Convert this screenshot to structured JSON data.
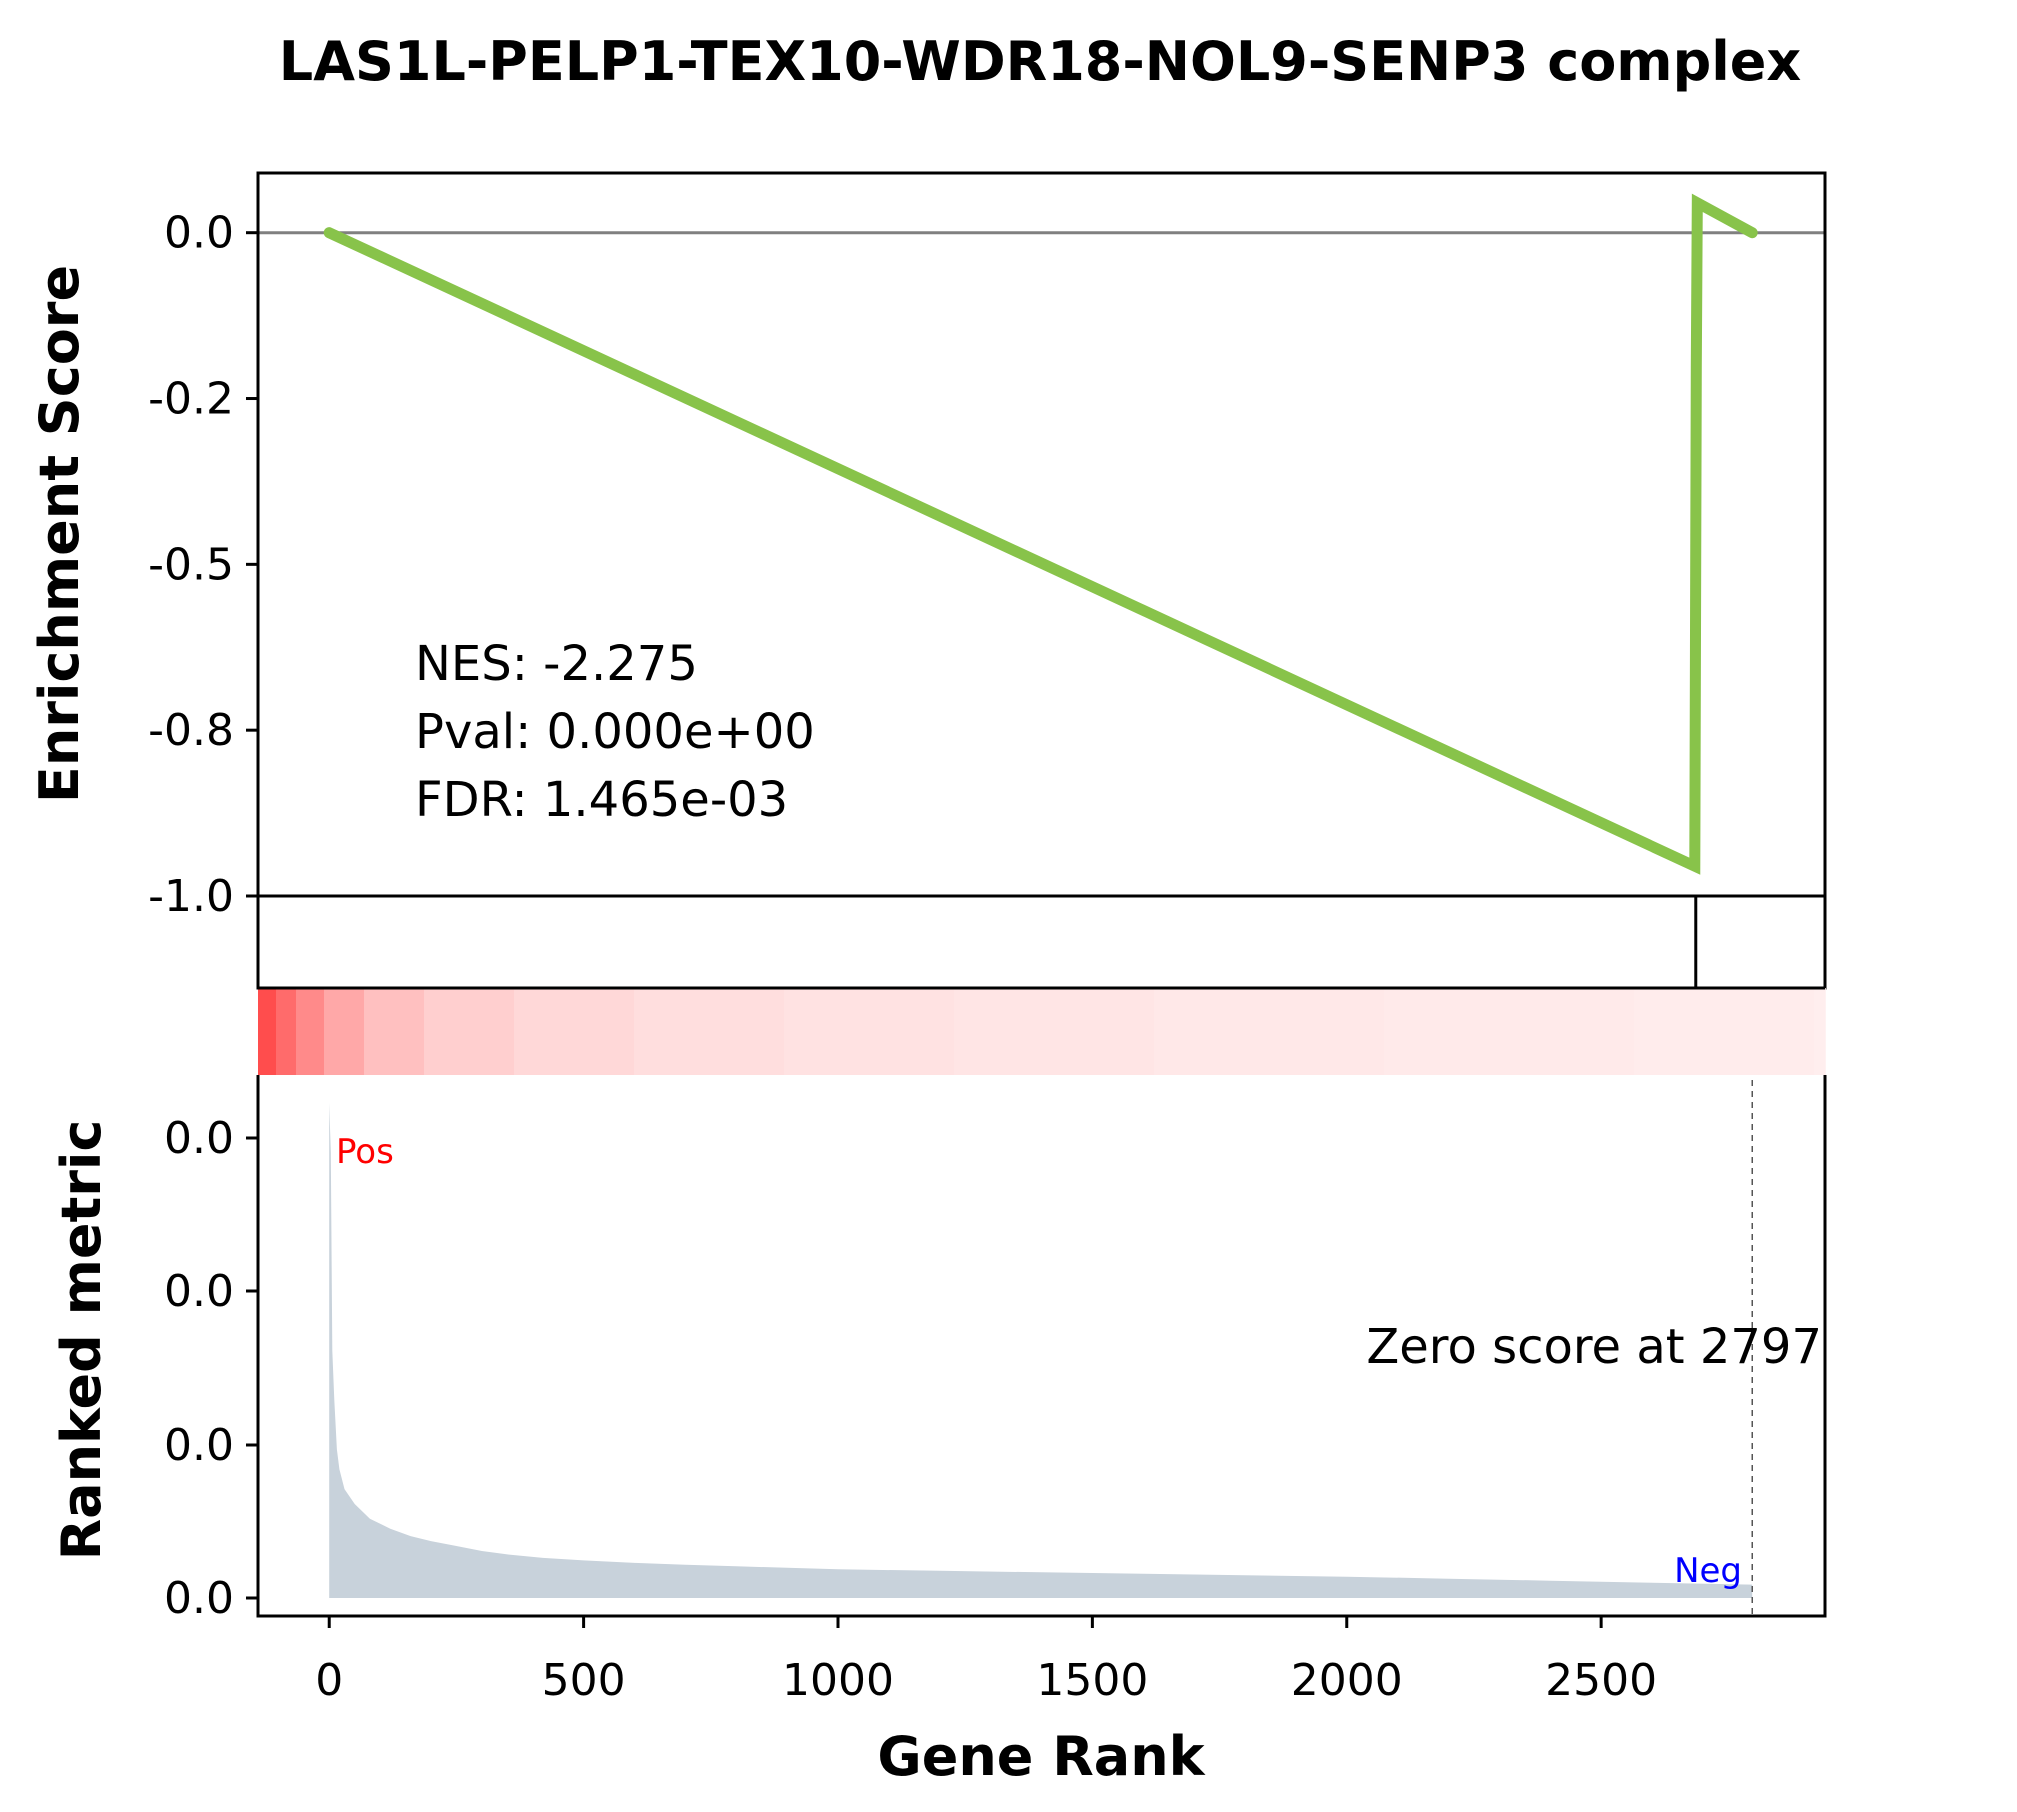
{
  "chart_data": {
    "type": "line",
    "title": "LAS1L-PELP1-TEX10-WDR18-NOL9-SENP3  complex",
    "xlabel": "Gene Rank",
    "top_panel": {
      "ylabel": "Enrichment Score",
      "yticks": [
        {
          "value": 0.0,
          "label": "0.0"
        },
        {
          "value": -0.25,
          "label": "-0.2"
        },
        {
          "value": -0.5,
          "label": "-0.5"
        },
        {
          "value": -0.75,
          "label": "-0.8"
        },
        {
          "value": -1.0,
          "label": "-1.0"
        }
      ],
      "ylim": [
        -1.0,
        0.09
      ],
      "xlim": [
        -140,
        2940
      ],
      "series": [
        {
          "name": "Running enrichment score",
          "color": "#88c34a",
          "points": [
            [
              0,
              0.0
            ],
            [
              2684,
              -0.955
            ],
            [
              2687,
              -0.2
            ],
            [
              2689,
              0.045
            ],
            [
              2797,
              0.0
            ]
          ]
        }
      ],
      "zero_line": 0.0,
      "stats": {
        "nes": "NES: -2.275",
        "pval": "Pval: 0.000e+00",
        "fdr": "FDR: 1.465e-03"
      }
    },
    "hit_panel": {
      "hits": [
        2686
      ]
    },
    "heat_panel": {
      "colors": [
        "#ff4d4d",
        "#ff6b6b",
        "#ff8a8a",
        "#ffa8a8",
        "#ffc0c0",
        "#ffcfcf",
        "#ffd8d8",
        "#ffdede",
        "#ffe2e2",
        "#ffe5e5",
        "#ffe8e8",
        "#ffeaea",
        "#ffecec",
        "#ffeeee"
      ]
    },
    "bottom_panel": {
      "ylabel": "Ranked metric",
      "yticks": [
        "0.0",
        "0.0",
        "0.0",
        "0.0"
      ],
      "ylim": [
        0,
        1
      ],
      "zero_score_label": "Zero score at 2797",
      "zero_score_rank": 2797,
      "pos_label": "Pos",
      "neg_label": "Neg",
      "fill_color": "#c8d2db",
      "metric_points": [
        [
          0,
          1.0
        ],
        [
          3,
          0.9
        ],
        [
          6,
          0.5
        ],
        [
          10,
          0.4
        ],
        [
          15,
          0.3
        ],
        [
          20,
          0.26
        ],
        [
          30,
          0.22
        ],
        [
          50,
          0.19
        ],
        [
          80,
          0.16
        ],
        [
          120,
          0.14
        ],
        [
          160,
          0.125
        ],
        [
          200,
          0.115
        ],
        [
          250,
          0.105
        ],
        [
          300,
          0.095
        ],
        [
          350,
          0.088
        ],
        [
          420,
          0.081
        ],
        [
          500,
          0.076
        ],
        [
          600,
          0.071
        ],
        [
          700,
          0.067
        ],
        [
          800,
          0.064
        ],
        [
          900,
          0.061
        ],
        [
          1000,
          0.058
        ],
        [
          1200,
          0.055
        ],
        [
          1400,
          0.052
        ],
        [
          1600,
          0.049
        ],
        [
          1800,
          0.046
        ],
        [
          2000,
          0.043
        ],
        [
          2200,
          0.039
        ],
        [
          2400,
          0.035
        ],
        [
          2600,
          0.031
        ],
        [
          2797,
          0.027
        ]
      ]
    },
    "xticks": [
      {
        "value": 0,
        "label": "0"
      },
      {
        "value": 500,
        "label": "500"
      },
      {
        "value": 1000,
        "label": "1000"
      },
      {
        "value": 1500,
        "label": "1500"
      },
      {
        "value": 2000,
        "label": "2000"
      },
      {
        "value": 2500,
        "label": "2500"
      }
    ]
  }
}
